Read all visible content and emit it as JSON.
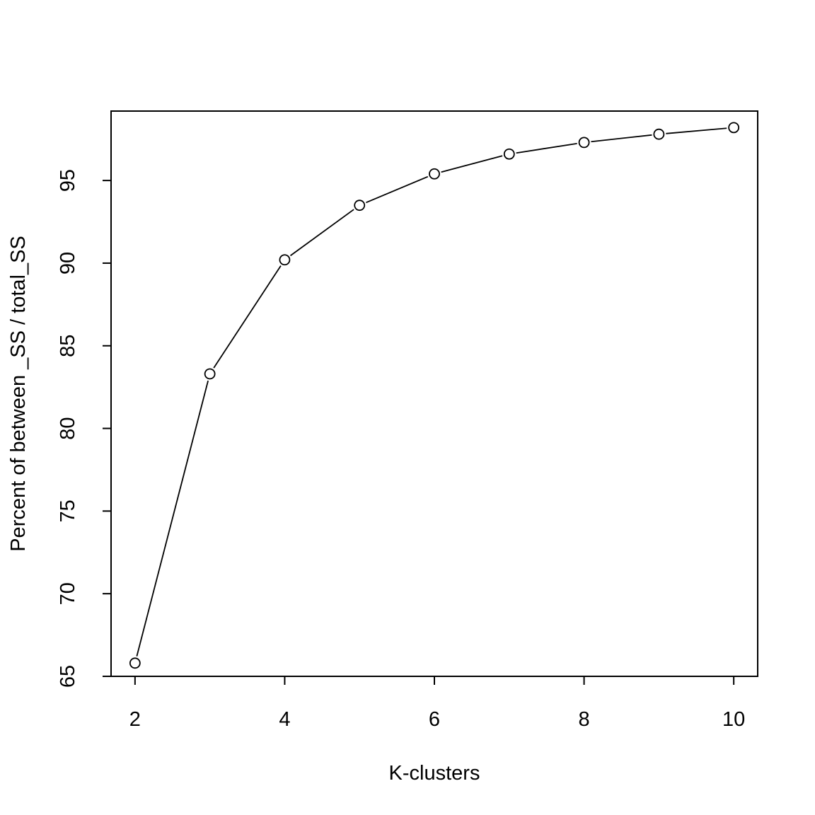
{
  "chart_data": {
    "type": "line",
    "title": "",
    "xlabel": "K-clusters",
    "ylabel": "Percent of between _SS / total_SS",
    "x": [
      2,
      3,
      4,
      5,
      6,
      7,
      8,
      9,
      10
    ],
    "series": [
      {
        "values": [
          65.8,
          83.3,
          90.2,
          93.5,
          95.4,
          96.6,
          97.3,
          97.8,
          98.2
        ]
      }
    ],
    "x_ticks": [
      "2",
      "4",
      "6",
      "8",
      "10"
    ],
    "y_ticks": [
      "65",
      "70",
      "75",
      "80",
      "85",
      "90",
      "95"
    ],
    "xlim": [
      1.68,
      10.32
    ],
    "ylim": [
      65.0,
      99.2
    ],
    "markers": "open-circle",
    "grid": false,
    "legend": "none"
  }
}
